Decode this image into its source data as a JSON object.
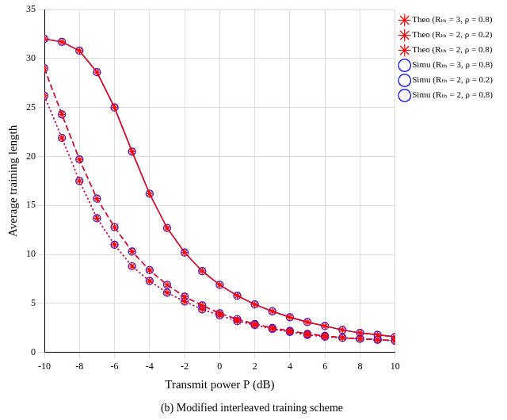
{
  "chart_data": {
    "type": "line",
    "subtitle": "(b) Modified interleaved training scheme",
    "x_label": "Transmit power P (dB)",
    "y_label": "Average training length",
    "x": [
      -10,
      -9,
      -8,
      -7,
      -6,
      -5,
      -4,
      -3,
      -2,
      -1,
      0,
      1,
      2,
      3,
      4,
      5,
      6,
      7,
      8,
      9,
      10
    ],
    "xlim": [
      -10,
      10
    ],
    "xticks": [
      -10,
      -8,
      -6,
      -4,
      -2,
      0,
      2,
      4,
      6,
      8,
      10
    ],
    "ylim": [
      0,
      35
    ],
    "yticks": [
      0,
      5,
      10,
      15,
      20,
      25,
      30,
      35
    ],
    "grid": true,
    "legend": "right",
    "series": [
      {
        "name": "Simu (Rₜₕ = 3, ρ = 0.8)",
        "color": "#0000ff",
        "marker": "circle",
        "line_style": "solid",
        "values": [
          32,
          31.7,
          30.8,
          28.6,
          25,
          20.5,
          16.2,
          12.7,
          10.2,
          8.3,
          6.9,
          5.8,
          4.9,
          4.2,
          3.6,
          3.1,
          2.7,
          2.3,
          2.0,
          1.8,
          1.6
        ]
      },
      {
        "name": "Theo (Rₜₕ = 3, ρ = 0.8)",
        "color": "#ff0000",
        "marker": "star",
        "line_style": "solid",
        "values": [
          32,
          31.7,
          30.8,
          28.6,
          25,
          20.5,
          16.2,
          12.7,
          10.2,
          8.3,
          6.9,
          5.8,
          4.9,
          4.2,
          3.6,
          3.1,
          2.7,
          2.3,
          2.0,
          1.8,
          1.6
        ]
      },
      {
        "name": "Simu (Rₜₕ = 2, ρ = 0.2)",
        "color": "#0000ff",
        "marker": "circle",
        "line_style": "dashed",
        "values": [
          29,
          24.3,
          19.7,
          15.7,
          12.8,
          10.3,
          8.4,
          6.9,
          5.7,
          4.8,
          4.0,
          3.4,
          2.9,
          2.5,
          2.2,
          1.9,
          1.7,
          1.5,
          1.4,
          1.3,
          1.2
        ]
      },
      {
        "name": "Theo (Rₜₕ = 2, ρ = 0.2)",
        "color": "#ff0000",
        "marker": "star",
        "line_style": "dashed",
        "values": [
          29,
          24.3,
          19.7,
          15.7,
          12.8,
          10.3,
          8.4,
          6.9,
          5.7,
          4.8,
          4.0,
          3.4,
          2.9,
          2.5,
          2.2,
          1.9,
          1.7,
          1.5,
          1.4,
          1.3,
          1.2
        ]
      },
      {
        "name": "Simu (Rₜₕ = 2, ρ = 0.8)",
        "color": "#0000ff",
        "marker": "circle",
        "line_style": "dotted",
        "values": [
          26.2,
          21.9,
          17.5,
          13.7,
          11,
          8.8,
          7.3,
          6.1,
          5.2,
          4.4,
          3.8,
          3.2,
          2.8,
          2.4,
          2.1,
          1.8,
          1.6,
          1.5,
          1.4,
          1.3,
          1.2
        ]
      },
      {
        "name": "Theo (Rₜₕ = 2, ρ = 0.8)",
        "color": "#ff0000",
        "marker": "star",
        "line_style": "dotted",
        "values": [
          26.2,
          21.9,
          17.5,
          13.7,
          11,
          8.8,
          7.3,
          6.1,
          5.2,
          4.4,
          3.8,
          3.2,
          2.8,
          2.4,
          2.1,
          1.8,
          1.6,
          1.5,
          1.4,
          1.3,
          1.2
        ]
      }
    ]
  }
}
